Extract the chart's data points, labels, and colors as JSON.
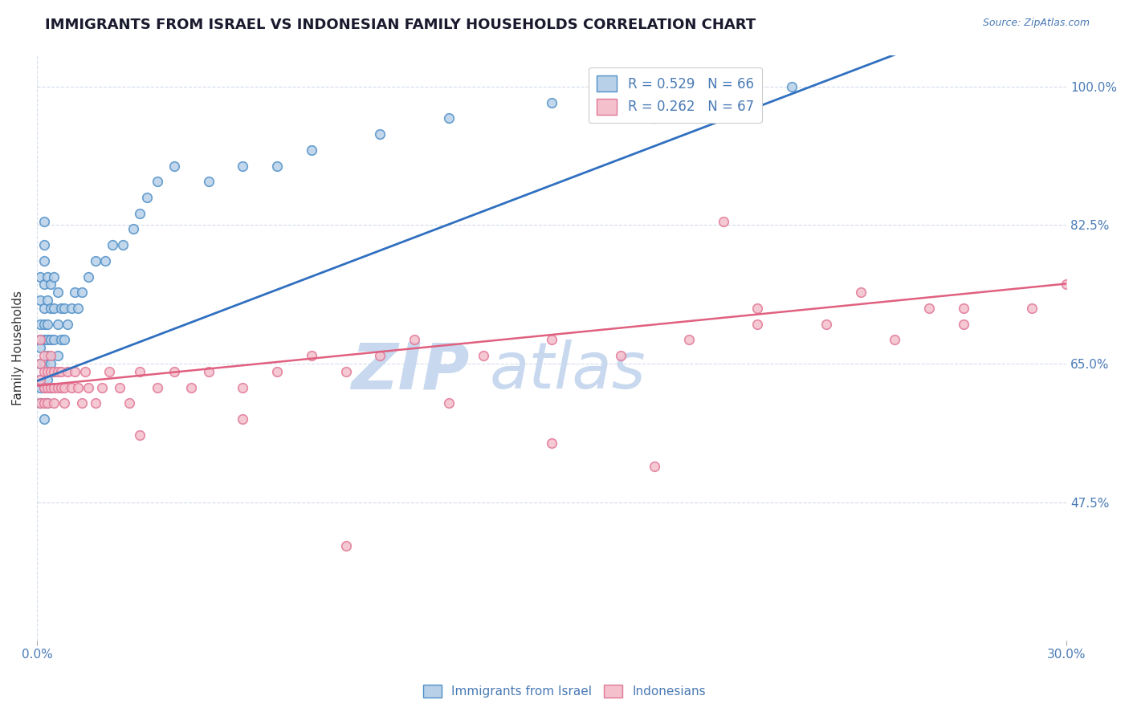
{
  "title": "IMMIGRANTS FROM ISRAEL VS INDONESIAN FAMILY HOUSEHOLDS CORRELATION CHART",
  "source_text": "Source: ZipAtlas.com",
  "ylabel": "Family Households",
  "xlim": [
    0.0,
    0.3
  ],
  "ylim": [
    0.3,
    1.04
  ],
  "xtick_labels": [
    "0.0%",
    "30.0%"
  ],
  "ytick_labels": [
    "47.5%",
    "65.0%",
    "82.5%",
    "100.0%"
  ],
  "ytick_values": [
    0.475,
    0.65,
    0.825,
    1.0
  ],
  "legend1_label": "R = 0.529   N = 66",
  "legend2_label": "R = 0.262   N = 67",
  "legend_label1": "Immigrants from Israel",
  "legend_label2": "Indonesians",
  "israel_color": "#b8d0e8",
  "indonesia_color": "#f4c0cc",
  "israel_edge_color": "#5090c8",
  "indonesia_edge_color": "#e07898",
  "israel_line_color": "#3070c0",
  "indonesia_line_color": "#e06080",
  "axis_color": "#4a7ab5",
  "background_color": "#ffffff",
  "grid_color": "#d0d8e8",
  "watermark_color": "#c8d8ee",
  "israel_x": [
    0.001,
    0.001,
    0.001,
    0.001,
    0.001,
    0.001,
    0.001,
    0.001,
    0.001,
    0.002,
    0.002,
    0.002,
    0.002,
    0.002,
    0.002,
    0.002,
    0.002,
    0.002,
    0.002,
    0.003,
    0.003,
    0.003,
    0.003,
    0.003,
    0.003,
    0.003,
    0.004,
    0.004,
    0.004,
    0.004,
    0.004,
    0.005,
    0.005,
    0.005,
    0.005,
    0.006,
    0.006,
    0.006,
    0.007,
    0.007,
    0.008,
    0.008,
    0.009,
    0.01,
    0.011,
    0.012,
    0.013,
    0.015,
    0.017,
    0.02,
    0.022,
    0.025,
    0.028,
    0.03,
    0.032,
    0.035,
    0.04,
    0.05,
    0.06,
    0.07,
    0.08,
    0.1,
    0.12,
    0.15,
    0.18,
    0.22
  ],
  "israel_y": [
    0.63,
    0.65,
    0.68,
    0.7,
    0.73,
    0.76,
    0.62,
    0.6,
    0.67,
    0.58,
    0.62,
    0.65,
    0.68,
    0.7,
    0.72,
    0.75,
    0.78,
    0.8,
    0.83,
    0.6,
    0.63,
    0.66,
    0.7,
    0.73,
    0.68,
    0.76,
    0.62,
    0.65,
    0.68,
    0.72,
    0.75,
    0.64,
    0.68,
    0.72,
    0.76,
    0.66,
    0.7,
    0.74,
    0.68,
    0.72,
    0.68,
    0.72,
    0.7,
    0.72,
    0.74,
    0.72,
    0.74,
    0.76,
    0.78,
    0.78,
    0.8,
    0.8,
    0.82,
    0.84,
    0.86,
    0.88,
    0.9,
    0.88,
    0.9,
    0.9,
    0.92,
    0.94,
    0.96,
    0.98,
    0.96,
    1.0
  ],
  "indonesia_x": [
    0.001,
    0.001,
    0.001,
    0.001,
    0.002,
    0.002,
    0.002,
    0.002,
    0.003,
    0.003,
    0.003,
    0.004,
    0.004,
    0.004,
    0.005,
    0.005,
    0.005,
    0.006,
    0.006,
    0.007,
    0.007,
    0.008,
    0.008,
    0.009,
    0.01,
    0.011,
    0.012,
    0.013,
    0.014,
    0.015,
    0.017,
    0.019,
    0.021,
    0.024,
    0.027,
    0.03,
    0.035,
    0.04,
    0.045,
    0.05,
    0.06,
    0.07,
    0.08,
    0.09,
    0.1,
    0.11,
    0.13,
    0.15,
    0.17,
    0.19,
    0.21,
    0.23,
    0.25,
    0.27,
    0.29,
    0.03,
    0.06,
    0.09,
    0.12,
    0.15,
    0.18,
    0.21,
    0.24,
    0.27,
    0.3,
    0.2,
    0.26
  ],
  "indonesia_y": [
    0.63,
    0.65,
    0.6,
    0.68,
    0.62,
    0.64,
    0.6,
    0.66,
    0.62,
    0.64,
    0.6,
    0.62,
    0.64,
    0.66,
    0.62,
    0.64,
    0.6,
    0.62,
    0.64,
    0.62,
    0.64,
    0.6,
    0.62,
    0.64,
    0.62,
    0.64,
    0.62,
    0.6,
    0.64,
    0.62,
    0.6,
    0.62,
    0.64,
    0.62,
    0.6,
    0.64,
    0.62,
    0.64,
    0.62,
    0.64,
    0.62,
    0.64,
    0.66,
    0.64,
    0.66,
    0.68,
    0.66,
    0.68,
    0.66,
    0.68,
    0.7,
    0.7,
    0.68,
    0.7,
    0.72,
    0.56,
    0.58,
    0.42,
    0.6,
    0.55,
    0.52,
    0.72,
    0.74,
    0.72,
    0.75,
    0.83,
    0.72
  ],
  "israel_line_intercept": 0.628,
  "israel_line_slope": 1.65,
  "indonesia_line_intercept": 0.622,
  "indonesia_line_slope": 0.43
}
